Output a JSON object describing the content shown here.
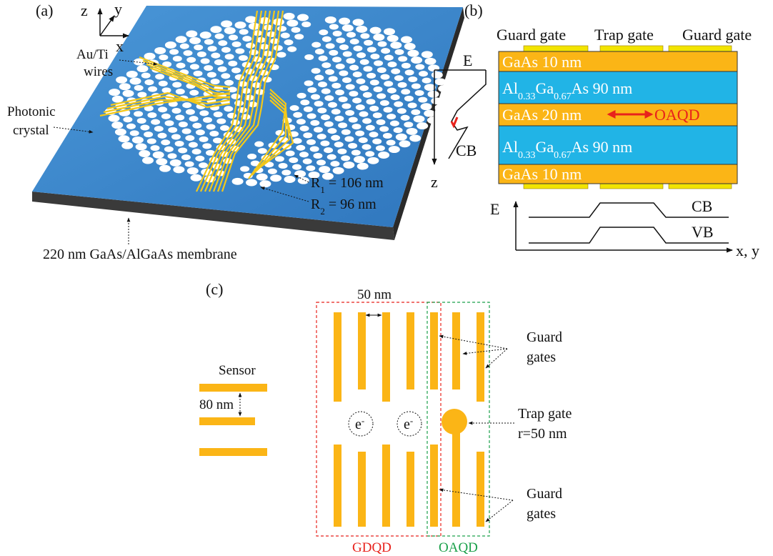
{
  "panel_a": {
    "label": "(a)",
    "axes": [
      "z",
      "y",
      "x"
    ],
    "wires_label": [
      "Au/Ti",
      "wires"
    ],
    "crystal_label": [
      "Photonic",
      "crystal"
    ],
    "r1": [
      "R",
      "1",
      " = 106 nm"
    ],
    "r2": [
      "R",
      "2",
      " = 96 nm"
    ],
    "membrane": "220 nm GaAs/AlGaAs membrane"
  },
  "panel_b": {
    "label": "(b)",
    "gates": [
      "Guard gate",
      "Trap gate",
      "Guard gate"
    ],
    "layers": [
      [
        "GaAs 10 nm"
      ],
      [
        "Al",
        "0.33",
        "Ga",
        "0.67",
        "As 90 nm"
      ],
      [
        "GaAs 20 nm"
      ],
      [
        "Al",
        "0.33",
        "Ga",
        "0.67",
        "As 90 nm"
      ],
      [
        "GaAs 10 nm"
      ]
    ],
    "oaqd": "OAQD",
    "band_left": {
      "e": "E",
      "cb": "CB",
      "z": "z"
    },
    "band_bottom": {
      "e": "E",
      "cb": "CB",
      "vb": "VB",
      "axis": "x, y"
    }
  },
  "panel_c": {
    "label": "(c)",
    "spacing": "50 nm",
    "sensor": "Sensor",
    "sensor_gap": "80 nm",
    "electrons": [
      [
        "e",
        "-"
      ],
      [
        "e",
        "-"
      ]
    ],
    "guard_top": [
      "Guard",
      "gates"
    ],
    "trap": [
      "Trap gate",
      "r=50 nm"
    ],
    "guard_bottom": [
      "Guard",
      "gates"
    ],
    "gdqd": "GDQD",
    "oaqd": "OAQD"
  }
}
